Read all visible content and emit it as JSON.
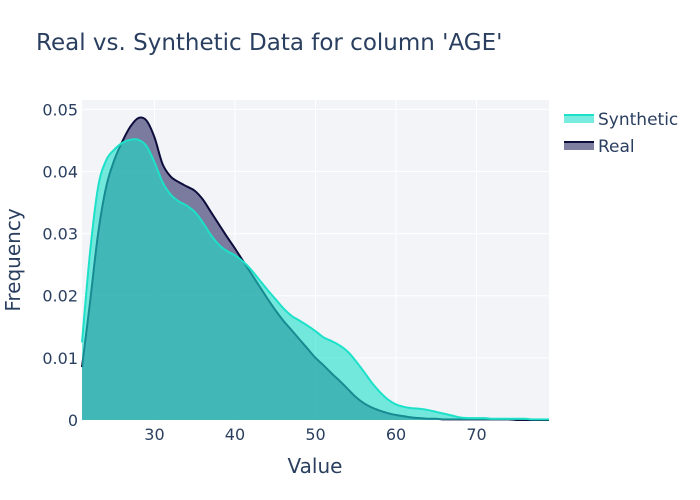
{
  "chart_data": {
    "type": "area",
    "title": "Real vs. Synthetic Data for column 'AGE'",
    "xlabel": "Value",
    "ylabel": "Frequency",
    "xlim": [
      21,
      79
    ],
    "ylim": [
      0,
      0.0515
    ],
    "x_ticks": [
      30,
      40,
      50,
      60,
      70
    ],
    "y_ticks": [
      {
        "value": 0,
        "label": "0"
      },
      {
        "value": 0.01,
        "label": "0.01"
      },
      {
        "value": 0.02,
        "label": "0.02"
      },
      {
        "value": 0.03,
        "label": "0.03"
      },
      {
        "value": 0.04,
        "label": "0.04"
      },
      {
        "value": 0.05,
        "label": "0.05"
      }
    ],
    "grid": true,
    "legend_position": "top-right",
    "series": [
      {
        "name": "Synthetic",
        "line_color": "#1de0c9",
        "fill_color": "#1de0c9",
        "fill_opacity": 0.6,
        "x": [
          21,
          22,
          23,
          24,
          25,
          26,
          27,
          28,
          29,
          30,
          31,
          32,
          33,
          34,
          35,
          36,
          37,
          38,
          39,
          40,
          41,
          42,
          43,
          44,
          45,
          46,
          47,
          48,
          49,
          50,
          51,
          52,
          53,
          54,
          55,
          56,
          57,
          58,
          59,
          60,
          61,
          62,
          63,
          64,
          65,
          66,
          67,
          68,
          69,
          70,
          71,
          72,
          73,
          74,
          75,
          76,
          77,
          78,
          79
        ],
        "y": [
          0.0125,
          0.027,
          0.0375,
          0.0418,
          0.0435,
          0.0446,
          0.0451,
          0.0451,
          0.0441,
          0.0415,
          0.0383,
          0.0363,
          0.0352,
          0.0345,
          0.0335,
          0.0318,
          0.0298,
          0.0282,
          0.0272,
          0.0265,
          0.0255,
          0.0242,
          0.0226,
          0.021,
          0.0195,
          0.018,
          0.0168,
          0.016,
          0.0152,
          0.0143,
          0.0133,
          0.0127,
          0.012,
          0.011,
          0.0095,
          0.0078,
          0.006,
          0.0045,
          0.0033,
          0.0025,
          0.0021,
          0.0019,
          0.0018,
          0.0016,
          0.0013,
          0.001,
          0.0007,
          0.0004,
          0.0003,
          0.0003,
          0.0003,
          0.0002,
          0.0002,
          0.0002,
          0.0002,
          0.0002,
          0.0001,
          0.0001,
          0.0001
        ]
      },
      {
        "name": "Real",
        "line_color": "#0d0d3d",
        "fill_color": "#3b3b70",
        "fill_opacity": 0.65,
        "x": [
          21,
          22,
          23,
          24,
          25,
          26,
          27,
          28,
          29,
          30,
          31,
          32,
          33,
          34,
          35,
          36,
          37,
          38,
          39,
          40,
          41,
          42,
          43,
          44,
          45,
          46,
          47,
          48,
          49,
          50,
          51,
          52,
          53,
          54,
          55,
          56,
          57,
          58,
          59,
          60,
          61,
          62,
          63,
          64,
          65,
          66,
          67,
          68,
          69,
          70,
          71,
          72,
          73,
          74,
          75,
          76,
          77,
          78,
          79
        ],
        "y": [
          0.0085,
          0.019,
          0.03,
          0.0375,
          0.0418,
          0.0448,
          0.0472,
          0.0486,
          0.0482,
          0.0455,
          0.0412,
          0.0392,
          0.0383,
          0.0376,
          0.0369,
          0.0355,
          0.0335,
          0.0315,
          0.0295,
          0.0276,
          0.0256,
          0.0236,
          0.0216,
          0.0196,
          0.0177,
          0.016,
          0.0145,
          0.013,
          0.0115,
          0.01,
          0.0088,
          0.0075,
          0.0063,
          0.005,
          0.0037,
          0.0027,
          0.002,
          0.0015,
          0.0011,
          0.0008,
          0.0006,
          0.0004,
          0.0003,
          0.0002,
          0.0002,
          0.0001,
          0.0001,
          0.0001,
          0.0001,
          0.0001,
          0.0001,
          0.0001,
          0.0001,
          0.0001,
          0,
          0,
          0,
          0,
          0
        ]
      }
    ]
  }
}
